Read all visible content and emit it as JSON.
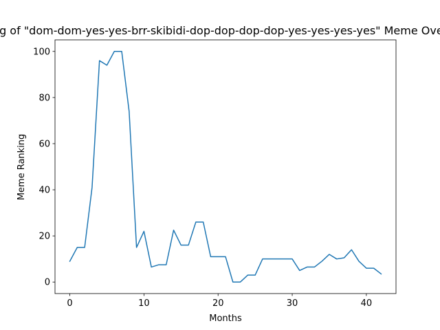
{
  "chart_data": {
    "type": "line",
    "title": "Ranking of \"dom-dom-yes-yes-brr-skibidi-dop-dop-dop-dop-yes-yes-yes-yes\" Meme Over Time",
    "xlabel": "Months",
    "ylabel": "Meme Ranking",
    "xlim": [
      -2,
      44
    ],
    "ylim": [
      -5,
      105
    ],
    "xticks": [
      0,
      10,
      20,
      30,
      40
    ],
    "yticks": [
      0,
      20,
      40,
      60,
      80,
      100
    ],
    "grid": false,
    "series": [
      {
        "color": "#1f77b4",
        "x": [
          0,
          1,
          2,
          3,
          4,
          5,
          6,
          7,
          8,
          9,
          10,
          11,
          12,
          13,
          14,
          15,
          16,
          17,
          18,
          19,
          20,
          21,
          22,
          23,
          24,
          25,
          26,
          27,
          28,
          29,
          30,
          31,
          32,
          33,
          34,
          35,
          36,
          37,
          38,
          39,
          40,
          41,
          42
        ],
        "values": [
          9,
          15,
          15,
          41,
          96,
          94,
          100,
          100,
          74,
          15,
          22,
          6.5,
          7.5,
          7.5,
          22.5,
          16,
          16,
          26,
          26,
          11,
          11,
          11,
          0,
          0,
          3,
          3,
          10,
          10,
          10,
          10,
          10,
          5,
          6.5,
          6.5,
          9,
          12,
          10,
          10.5,
          14,
          9,
          6,
          6,
          3.5
        ]
      }
    ]
  }
}
